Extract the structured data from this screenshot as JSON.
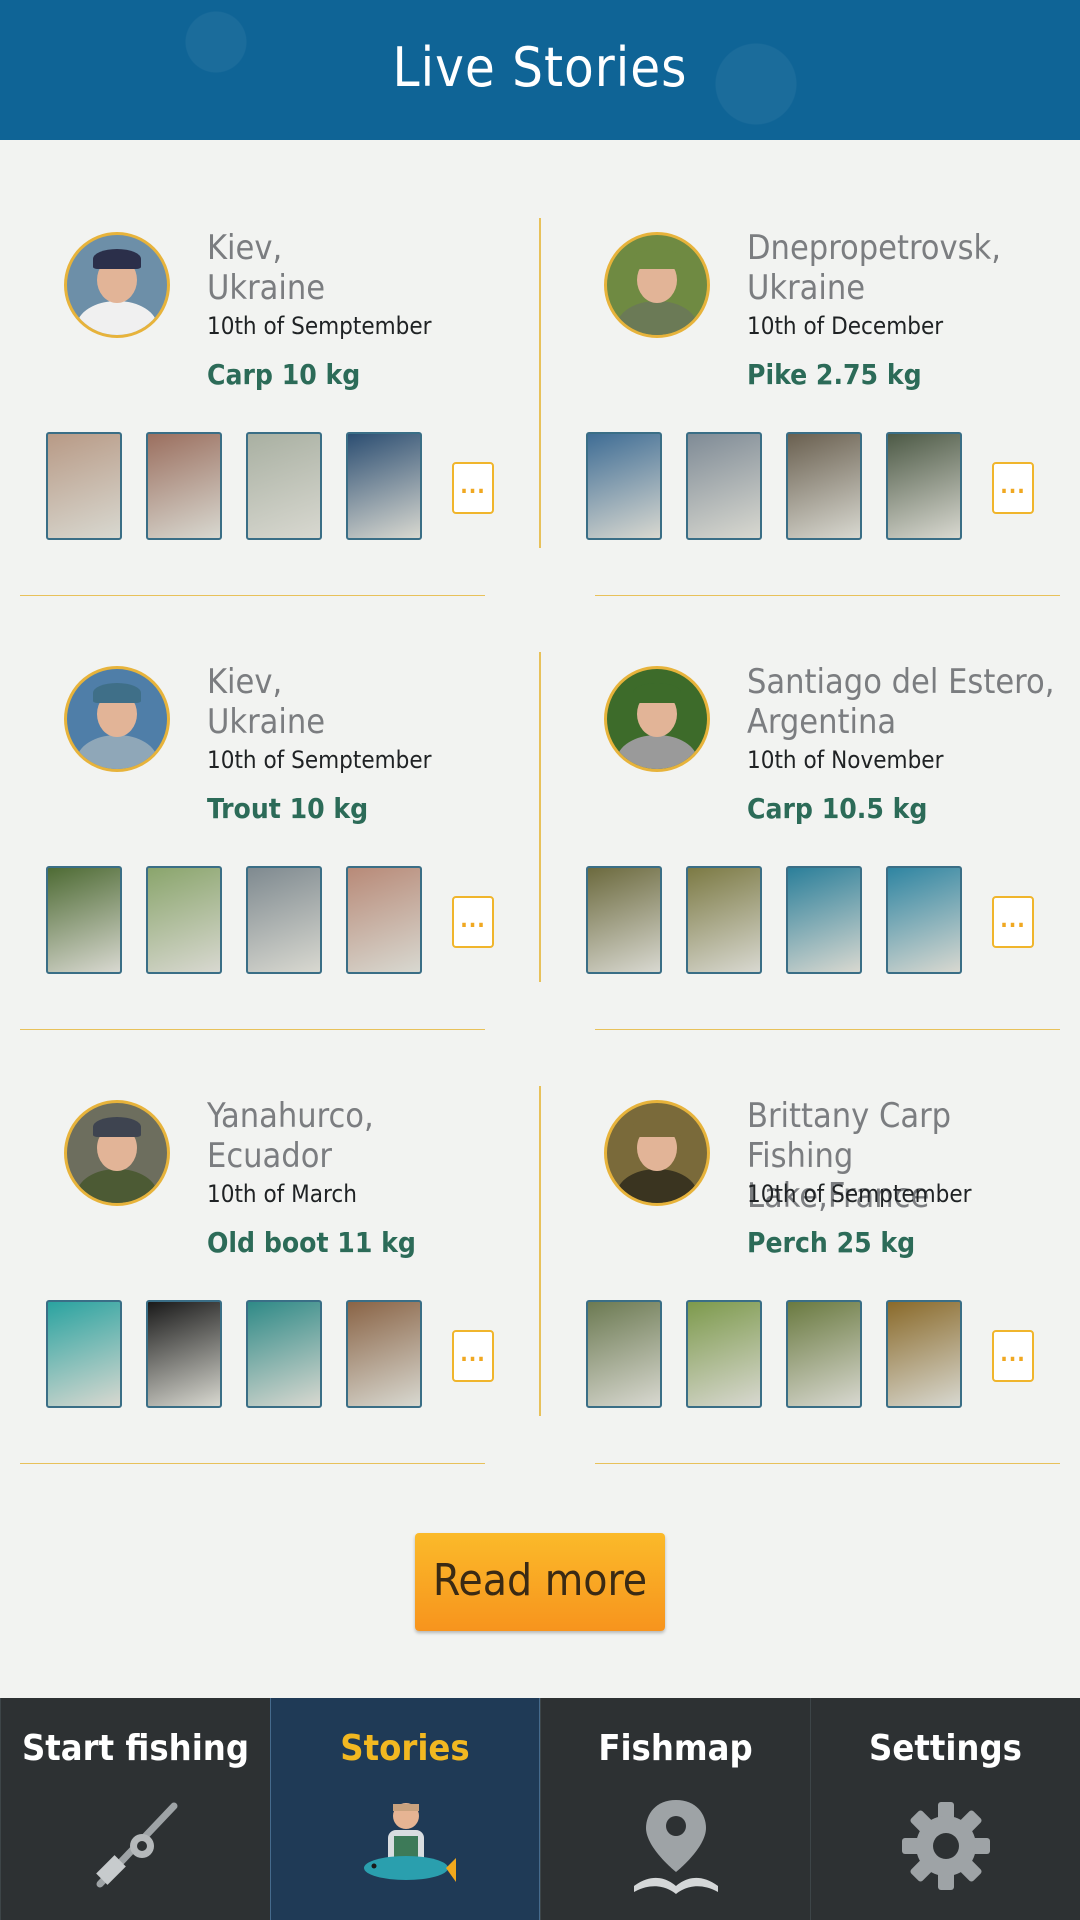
{
  "header": {
    "title": "Live Stories"
  },
  "stories": [
    {
      "place": "Kiev,\nUkraine",
      "date": "10th of Semptember",
      "catch": "Carp 10 kg",
      "avatar": {
        "bg": "#6d8fa8",
        "shirt": "#f0f0f0",
        "cap": "#2b2f4a"
      },
      "thumbs": [
        "#b89a86",
        "#9b6f5f",
        "#a9b0a2",
        "#2c4e72"
      ],
      "more": "..."
    },
    {
      "place": "Dnepropetrovsk,\nUkraine",
      "date": "10th of December",
      "catch": "Pike 2.75 kg",
      "avatar": {
        "bg": "#6f8a42",
        "shirt": "#6b7a56",
        "cap": "#6f8a42"
      },
      "thumbs": [
        "#3f6d95",
        "#7f8b96",
        "#6a6050",
        "#4d5a46"
      ],
      "more": "..."
    },
    {
      "place": "Kiev,\nUkraine",
      "date": "10th of Semptember",
      "catch": "Trout 10 kg",
      "avatar": {
        "bg": "#4f7ea8",
        "shirt": "#8fa7b8",
        "cap": "#3f6f88"
      },
      "thumbs": [
        "#4e6b34",
        "#8aa56c",
        "#7f8a90",
        "#b88a78"
      ],
      "more": "..."
    },
    {
      "place": "Santiago del Estero,\nArgentina",
      "date": "10th of November",
      "catch": "Carp 10.5 kg",
      "avatar": {
        "bg": "#3d6b2a",
        "shirt": "#9a9a9a",
        "cap": "#3d6b2a"
      },
      "thumbs": [
        "#6c6a3e",
        "#7c7a44",
        "#2b7f9a",
        "#2f85a2"
      ],
      "more": "..."
    },
    {
      "place": "Yanahurco,\nEcuador",
      "date": "10th of March",
      "catch": "Old boot 11 kg",
      "avatar": {
        "bg": "#6d6e5e",
        "shirt": "#4c5a34",
        "cap": "#3e4450"
      },
      "thumbs": [
        "#2aa3a0",
        "#1a1a1a",
        "#2f8a87",
        "#8a6446"
      ],
      "more": "..."
    },
    {
      "place": "Brittany Carp Fishing\nLake,France",
      "date": "10th of Semptember",
      "catch": "Perch 25 kg",
      "avatar": {
        "bg": "#7a6a3a",
        "shirt": "#3a3420",
        "cap": "#7a6a3a"
      },
      "thumbs": [
        "#6c7a52",
        "#7d9a4c",
        "#6a7a40",
        "#8a6a2a"
      ],
      "more": "..."
    }
  ],
  "read_more": "Read more",
  "nav": [
    {
      "label": "Start fishing",
      "icon": "fishing-rod-icon"
    },
    {
      "label": "Stories",
      "icon": "fisherman-icon",
      "active": true
    },
    {
      "label": "Fishmap",
      "icon": "map-pin-icon"
    },
    {
      "label": "Settings",
      "icon": "gear-icon"
    }
  ],
  "colors": {
    "header": "#0f6496",
    "accent": "#f2b821",
    "catch": "#2c6b58",
    "divider": "#e8c15a"
  }
}
